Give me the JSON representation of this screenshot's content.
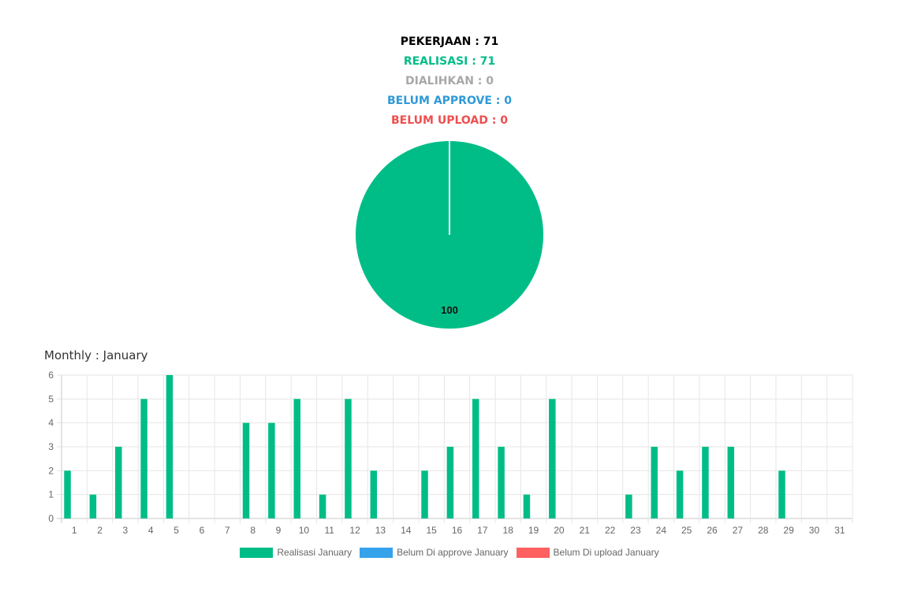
{
  "summary": {
    "pekerjaan": "PEKERJAAN : 71",
    "realisasi": "REALISASI : 71",
    "dialihkan": "DIALIHKAN : 0",
    "belum_approve": "BELUM APPROVE : 0",
    "belum_upload": "BELUM UPLOAD : 0"
  },
  "colors": {
    "pekerjaan": "#000000",
    "realisasi": "#00bd87",
    "dialihkan": "#a8a8a8",
    "belum_approve": "#2e9ad7",
    "belum_upload": "#ef4e4e"
  },
  "monthly_title": "Monthly : January",
  "chart_data": [
    {
      "type": "pie",
      "slices": [
        {
          "label": "",
          "value": 100,
          "color": "#00bd87"
        }
      ],
      "data_labels": [
        "100"
      ]
    },
    {
      "type": "bar",
      "title": "Monthly : January",
      "categories": [
        "1",
        "2",
        "3",
        "4",
        "5",
        "6",
        "7",
        "8",
        "9",
        "10",
        "11",
        "12",
        "13",
        "14",
        "15",
        "16",
        "17",
        "18",
        "19",
        "20",
        "21",
        "22",
        "23",
        "24",
        "25",
        "26",
        "27",
        "28",
        "29",
        "30",
        "31"
      ],
      "series": [
        {
          "name": "Realisasi January",
          "color": "#00bd87",
          "values": [
            2,
            1,
            3,
            5,
            6,
            0,
            0,
            4,
            4,
            5,
            1,
            5,
            2,
            0,
            2,
            3,
            5,
            3,
            1,
            5,
            0,
            0,
            1,
            3,
            2,
            3,
            3,
            0,
            2,
            0,
            0
          ]
        },
        {
          "name": "Belum Di approve January",
          "color": "#36a2eb",
          "values": [
            0,
            0,
            0,
            0,
            0,
            0,
            0,
            0,
            0,
            0,
            0,
            0,
            0,
            0,
            0,
            0,
            0,
            0,
            0,
            0,
            0,
            0,
            0,
            0,
            0,
            0,
            0,
            0,
            0,
            0,
            0
          ]
        },
        {
          "name": "Belum Di upload January",
          "color": "#ff6060",
          "values": [
            0,
            0,
            0,
            0,
            0,
            0,
            0,
            0,
            0,
            0,
            0,
            0,
            0,
            0,
            0,
            0,
            0,
            0,
            0,
            0,
            0,
            0,
            0,
            0,
            0,
            0,
            0,
            0,
            0,
            0,
            0
          ]
        }
      ],
      "ylim": [
        0,
        6
      ],
      "yticks": [
        "0",
        "1",
        "2",
        "3",
        "4",
        "5",
        "6"
      ],
      "grid": true,
      "legend": "bottom"
    }
  ]
}
